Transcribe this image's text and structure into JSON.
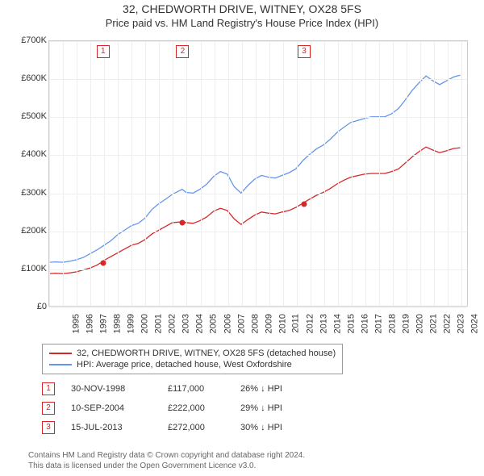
{
  "title_main": "32, CHEDWORTH DRIVE, WITNEY, OX28 5FS",
  "title_sub": "Price paid vs. HM Land Registry's House Price Index (HPI)",
  "chart": {
    "type": "line",
    "xlim": [
      1995,
      2025.5
    ],
    "ylim": [
      0,
      700000
    ],
    "y_ticks": [
      0,
      100000,
      200000,
      300000,
      400000,
      500000,
      600000,
      700000
    ],
    "y_tick_labels": [
      "£0",
      "£100K",
      "£200K",
      "£300K",
      "£400K",
      "£500K",
      "£600K",
      "£700K"
    ],
    "x_ticks": [
      1995,
      1996,
      1997,
      1998,
      1999,
      2000,
      2001,
      2002,
      2003,
      2004,
      2005,
      2006,
      2007,
      2008,
      2009,
      2010,
      2011,
      2012,
      2013,
      2014,
      2015,
      2016,
      2017,
      2018,
      2019,
      2020,
      2021,
      2022,
      2023,
      2024,
      2025
    ],
    "grid_color": "#eeeeee",
    "border_color": "#cccccc",
    "background_color": "#ffffff",
    "series": [
      {
        "name": "property",
        "label": "32, CHEDWORTH DRIVE, WITNEY, OX28 5FS (detached house)",
        "color": "#d62728",
        "line_width": 1.3,
        "data": [
          [
            1995.0,
            85000
          ],
          [
            1995.5,
            86000
          ],
          [
            1996.0,
            85000
          ],
          [
            1996.5,
            87000
          ],
          [
            1997.0,
            90000
          ],
          [
            1997.5,
            95000
          ],
          [
            1998.0,
            100000
          ],
          [
            1998.5,
            108000
          ],
          [
            1998.9,
            117000
          ],
          [
            1999.0,
            120000
          ],
          [
            1999.5,
            130000
          ],
          [
            2000.0,
            140000
          ],
          [
            2000.5,
            150000
          ],
          [
            2001.0,
            160000
          ],
          [
            2001.5,
            165000
          ],
          [
            2002.0,
            175000
          ],
          [
            2002.5,
            190000
          ],
          [
            2003.0,
            200000
          ],
          [
            2003.5,
            210000
          ],
          [
            2004.0,
            220000
          ],
          [
            2004.7,
            222000
          ],
          [
            2005.0,
            220000
          ],
          [
            2005.5,
            218000
          ],
          [
            2006.0,
            225000
          ],
          [
            2006.5,
            235000
          ],
          [
            2007.0,
            250000
          ],
          [
            2007.5,
            258000
          ],
          [
            2008.0,
            252000
          ],
          [
            2008.5,
            230000
          ],
          [
            2009.0,
            215000
          ],
          [
            2009.5,
            228000
          ],
          [
            2010.0,
            240000
          ],
          [
            2010.5,
            248000
          ],
          [
            2011.0,
            245000
          ],
          [
            2011.5,
            243000
          ],
          [
            2012.0,
            248000
          ],
          [
            2012.5,
            252000
          ],
          [
            2013.0,
            260000
          ],
          [
            2013.54,
            272000
          ],
          [
            2014.0,
            282000
          ],
          [
            2014.5,
            292000
          ],
          [
            2015.0,
            300000
          ],
          [
            2015.5,
            310000
          ],
          [
            2016.0,
            322000
          ],
          [
            2016.5,
            332000
          ],
          [
            2017.0,
            340000
          ],
          [
            2017.5,
            344000
          ],
          [
            2018.0,
            348000
          ],
          [
            2018.5,
            350000
          ],
          [
            2019.0,
            350000
          ],
          [
            2019.5,
            350000
          ],
          [
            2020.0,
            355000
          ],
          [
            2020.5,
            362000
          ],
          [
            2021.0,
            378000
          ],
          [
            2021.5,
            394000
          ],
          [
            2022.0,
            408000
          ],
          [
            2022.5,
            420000
          ],
          [
            2023.0,
            412000
          ],
          [
            2023.5,
            405000
          ],
          [
            2024.0,
            410000
          ],
          [
            2024.5,
            416000
          ],
          [
            2025.0,
            418000
          ]
        ]
      },
      {
        "name": "hpi",
        "label": "HPI: Average price, detached house, West Oxfordshire",
        "color": "#6495ed",
        "line_width": 1.3,
        "data": [
          [
            1995.0,
            115000
          ],
          [
            1995.5,
            116000
          ],
          [
            1996.0,
            115000
          ],
          [
            1996.5,
            118000
          ],
          [
            1997.0,
            122000
          ],
          [
            1997.5,
            128000
          ],
          [
            1998.0,
            138000
          ],
          [
            1998.5,
            148000
          ],
          [
            1999.0,
            160000
          ],
          [
            1999.5,
            172000
          ],
          [
            2000.0,
            188000
          ],
          [
            2000.5,
            200000
          ],
          [
            2001.0,
            212000
          ],
          [
            2001.5,
            218000
          ],
          [
            2002.0,
            232000
          ],
          [
            2002.5,
            255000
          ],
          [
            2003.0,
            270000
          ],
          [
            2003.5,
            282000
          ],
          [
            2004.0,
            295000
          ],
          [
            2004.7,
            308000
          ],
          [
            2005.0,
            300000
          ],
          [
            2005.5,
            298000
          ],
          [
            2006.0,
            308000
          ],
          [
            2006.5,
            322000
          ],
          [
            2007.0,
            342000
          ],
          [
            2007.5,
            355000
          ],
          [
            2008.0,
            348000
          ],
          [
            2008.5,
            315000
          ],
          [
            2009.0,
            298000
          ],
          [
            2009.5,
            318000
          ],
          [
            2010.0,
            335000
          ],
          [
            2010.5,
            345000
          ],
          [
            2011.0,
            340000
          ],
          [
            2011.5,
            338000
          ],
          [
            2012.0,
            345000
          ],
          [
            2012.5,
            352000
          ],
          [
            2013.0,
            362000
          ],
          [
            2013.54,
            385000
          ],
          [
            2014.0,
            400000
          ],
          [
            2014.5,
            415000
          ],
          [
            2015.0,
            425000
          ],
          [
            2015.5,
            440000
          ],
          [
            2016.0,
            458000
          ],
          [
            2016.5,
            472000
          ],
          [
            2017.0,
            485000
          ],
          [
            2017.5,
            490000
          ],
          [
            2018.0,
            495000
          ],
          [
            2018.5,
            500000
          ],
          [
            2019.0,
            500000
          ],
          [
            2019.5,
            500000
          ],
          [
            2020.0,
            508000
          ],
          [
            2020.5,
            522000
          ],
          [
            2021.0,
            545000
          ],
          [
            2021.5,
            570000
          ],
          [
            2022.0,
            590000
          ],
          [
            2022.5,
            608000
          ],
          [
            2023.0,
            595000
          ],
          [
            2023.5,
            585000
          ],
          [
            2024.0,
            595000
          ],
          [
            2024.5,
            605000
          ],
          [
            2025.0,
            610000
          ]
        ]
      }
    ],
    "sale_markers": [
      {
        "n": "1",
        "x": 1998.92,
        "y": 117000
      },
      {
        "n": "2",
        "x": 2004.7,
        "y": 222000
      },
      {
        "n": "3",
        "x": 2013.54,
        "y": 272000
      }
    ]
  },
  "legend": [
    {
      "color": "#d62728",
      "label": "32, CHEDWORTH DRIVE, WITNEY, OX28 5FS (detached house)"
    },
    {
      "color": "#6495ed",
      "label": "HPI: Average price, detached house, West Oxfordshire"
    }
  ],
  "annotations": [
    {
      "n": "1",
      "date": "30-NOV-1998",
      "price": "£117,000",
      "diff": "26% ↓ HPI"
    },
    {
      "n": "2",
      "date": "10-SEP-2004",
      "price": "£222,000",
      "diff": "29% ↓ HPI"
    },
    {
      "n": "3",
      "date": "15-JUL-2013",
      "price": "£272,000",
      "diff": "30% ↓ HPI"
    }
  ],
  "footer_line1": "Contains HM Land Registry data © Crown copyright and database right 2024.",
  "footer_line2": "This data is licensed under the Open Government Licence v3.0."
}
